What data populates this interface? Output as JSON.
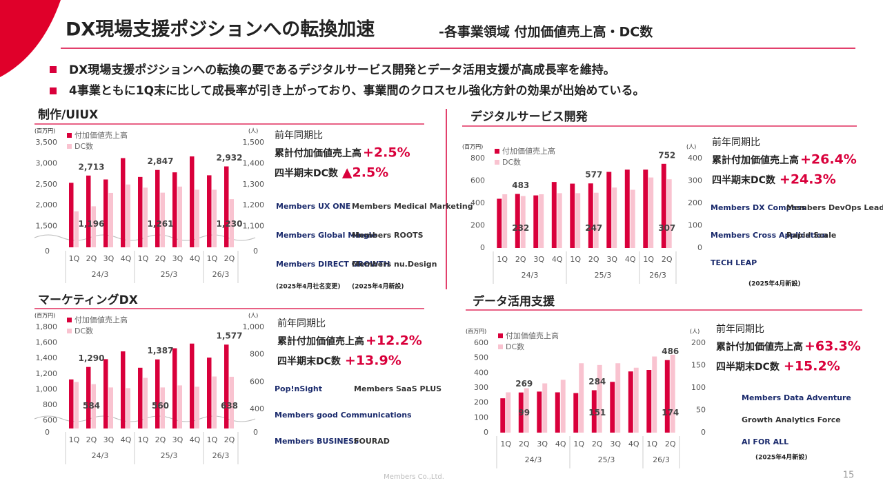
{
  "header": {
    "title": "DX現場支援ポジションへの転換加速",
    "subtitle": "-各事業領域 付加価値売上高・DC数"
  },
  "bullets": [
    "DX現場支援ポジションへの転換の要であるデジタルサービス開発とデータ活用支援が高成長率を維持。",
    "4事業ともに1Q末に比して成長率が引き上がっており、事業間のクロスセル強化方針の効果が出始めている。"
  ],
  "chart_data": [
    {
      "type": "bar",
      "title": "制作/UIUX",
      "ylabel": "(百万円)",
      "y2label": "(人)",
      "categories": [
        "1Q",
        "2Q",
        "3Q",
        "4Q",
        "1Q",
        "2Q",
        "3Q",
        "4Q",
        "1Q",
        "2Q"
      ],
      "groups": [
        {
          "label": "24/3",
          "span": 4
        },
        {
          "label": "25/3",
          "span": 4
        },
        {
          "label": "26/3",
          "span": 2
        }
      ],
      "ylim": [
        1000,
        3500
      ],
      "yticks": [
        {
          "value": 1500,
          "label": "1,500"
        },
        {
          "value": 2000,
          "label": "2,000"
        },
        {
          "value": 2500,
          "label": "2,500"
        },
        {
          "value": 3000,
          "label": "3,000"
        },
        {
          "value": 3500,
          "label": "3,500"
        }
      ],
      "ybase": 0,
      "y2lim": [
        1000,
        1500
      ],
      "y2ticks": [
        {
          "value": 1100,
          "label": "1,100"
        },
        {
          "value": 1200,
          "label": "1,200"
        },
        {
          "value": 1300,
          "label": "1,300"
        },
        {
          "value": 1400,
          "label": "1,400"
        },
        {
          "value": 1500,
          "label": "1,500"
        }
      ],
      "y2base": 0,
      "series": [
        {
          "name": "付加価値売上高",
          "color": "#d9003b",
          "values": [
            2540,
            2713,
            2620,
            3130,
            2680,
            2847,
            2790,
            3170,
            2720,
            2932
          ],
          "value_labels": [
            null,
            "2,713",
            null,
            null,
            null,
            "2,847",
            null,
            null,
            null,
            "2,932"
          ]
        },
        {
          "name": "DC数",
          "color": "#f9c3d0",
          "axis": "y2",
          "values": [
            1172,
            1196,
            1260,
            1300,
            1285,
            1261,
            1290,
            1275,
            1275,
            1230
          ],
          "value_labels": [
            null,
            "1,196",
            null,
            null,
            null,
            "1,261",
            null,
            null,
            null,
            "1,230"
          ]
        }
      ]
    },
    {
      "type": "bar",
      "title": "デジタルサービス開発",
      "ylabel": "(百万円)",
      "y2label": "(人)",
      "categories": [
        "1Q",
        "2Q",
        "3Q",
        "4Q",
        "1Q",
        "2Q",
        "3Q",
        "4Q",
        "1Q",
        "2Q"
      ],
      "groups": [
        {
          "label": "24/3",
          "span": 4
        },
        {
          "label": "25/3",
          "span": 4
        },
        {
          "label": "26/3",
          "span": 2
        }
      ],
      "ylim": [
        0,
        800
      ],
      "yticks": [
        0,
        200,
        400,
        600,
        800
      ],
      "y2lim": [
        0,
        400
      ],
      "y2ticks": [
        0,
        100,
        200,
        300,
        400
      ],
      "series": [
        {
          "name": "付加価値売上高",
          "color": "#d9003b",
          "values": [
            440,
            483,
            470,
            590,
            575,
            577,
            680,
            700,
            700,
            752
          ],
          "value_labels": [
            null,
            "483",
            null,
            null,
            null,
            "577",
            null,
            null,
            null,
            "752"
          ]
        },
        {
          "name": "DC数",
          "color": "#f9c3d0",
          "axis": "y2",
          "values": [
            240,
            232,
            240,
            245,
            245,
            247,
            270,
            260,
            315,
            307
          ],
          "value_labels": [
            null,
            "232",
            null,
            null,
            null,
            "247",
            null,
            null,
            null,
            "307"
          ]
        }
      ]
    },
    {
      "type": "bar",
      "title": "マーケティングDX",
      "ylabel": "(百万円)",
      "y2label": "(人)",
      "categories": [
        "1Q",
        "2Q",
        "3Q",
        "4Q",
        "1Q",
        "2Q",
        "3Q",
        "4Q",
        "1Q",
        "2Q"
      ],
      "groups": [
        {
          "label": "24/3",
          "span": 4
        },
        {
          "label": "25/3",
          "span": 4
        },
        {
          "label": "26/3",
          "span": 2
        }
      ],
      "ylim": [
        500,
        1800
      ],
      "yticks": [
        600,
        800,
        {
          "value": 1000,
          "label": "1,000"
        },
        {
          "value": 1200,
          "label": "1,200"
        },
        {
          "value": 1400,
          "label": "1,400"
        },
        {
          "value": 1600,
          "label": "1,600"
        },
        {
          "value": 1800,
          "label": "1,800"
        }
      ],
      "ybase": 0,
      "y2lim": [
        260,
        1000
      ],
      "y2ticks": [
        400,
        600,
        800,
        {
          "value": 1000,
          "label": "1,000"
        }
      ],
      "y2base": 0,
      "series": [
        {
          "name": "付加価値売上高",
          "color": "#d9003b",
          "values": [
            1130,
            1290,
            1390,
            1490,
            1280,
            1387,
            1530,
            1590,
            1410,
            1577
          ],
          "value_labels": [
            null,
            "1,290",
            null,
            null,
            null,
            "1,387",
            null,
            null,
            null,
            "1,577"
          ]
        },
        {
          "name": "DC数",
          "color": "#f9c3d0",
          "axis": "y2",
          "values": [
            600,
            584,
            560,
            555,
            630,
            560,
            575,
            565,
            640,
            638
          ],
          "value_labels": [
            null,
            "584",
            null,
            null,
            null,
            "560",
            null,
            null,
            null,
            "638"
          ]
        }
      ]
    },
    {
      "type": "bar",
      "title": "データ活用支援",
      "ylabel": "(百万円)",
      "y2label": "(人)",
      "categories": [
        "1Q",
        "2Q",
        "3Q",
        "4Q",
        "1Q",
        "2Q",
        "3Q",
        "4Q",
        "1Q",
        "2Q"
      ],
      "groups": [
        {
          "label": "24/3",
          "span": 4
        },
        {
          "label": "25/3",
          "span": 4
        },
        {
          "label": "26/3",
          "span": 2
        }
      ],
      "ylim": [
        0,
        600
      ],
      "yticks": [
        0,
        100,
        200,
        300,
        400,
        500,
        600
      ],
      "y2lim": [
        0,
        200
      ],
      "y2ticks": [
        0,
        50,
        100,
        150,
        200
      ],
      "series": [
        {
          "name": "付加価値売上高",
          "color": "#d9003b",
          "values": [
            230,
            269,
            275,
            270,
            265,
            284,
            340,
            410,
            420,
            486
          ],
          "value_labels": [
            null,
            "269",
            null,
            null,
            null,
            "284",
            null,
            null,
            null,
            "486"
          ]
        },
        {
          "name": "DC数",
          "color": "#f9c3d0",
          "axis": "y2",
          "values": [
            90,
            99,
            110,
            118,
            155,
            151,
            155,
            145,
            170,
            174
          ],
          "value_labels": [
            null,
            "99",
            null,
            null,
            null,
            "151",
            null,
            null,
            null,
            "174"
          ]
        }
      ]
    }
  ],
  "panels": [
    {
      "caption": "前年同期比",
      "sales_label": "累計付加価値売上高",
      "sales_change": "+2.5%",
      "dc_label": "四半期末DC数",
      "dc_change": "▲2.5%",
      "logos": [
        "Members UX ONE",
        "Members Medical Marketing",
        "Members Global Mingle",
        "Members ROOTS",
        "Members DIRECT GROWTH",
        "Members nu.Design"
      ],
      "notes": [
        "(2025年4月社名変更)",
        "(2025年4月新設)"
      ]
    },
    {
      "caption": "前年同期比",
      "sales_label": "累計付加価値売上高",
      "sales_change": "+26.4%",
      "dc_label": "四半期末DC数",
      "dc_change": "+24.3%",
      "logos": [
        "Members DX Compass",
        "Members DevOps Lead",
        "Members Cross Application",
        "Rapid Scale",
        "TECH LEAP"
      ],
      "notes": [
        "(2025年4月新設)"
      ]
    },
    {
      "caption": "前年同期比",
      "sales_label": "累計付加価値売上高",
      "sales_change": "+12.2%",
      "dc_label": "四半期末DC数",
      "dc_change": "+13.9%",
      "logos": [
        "Pop!nSight",
        "Members SaaS PLUS",
        "Members good Communications",
        "",
        "Members BUSINESS",
        "FOURAD"
      ],
      "notes": []
    },
    {
      "caption": "前年同期比",
      "sales_label": "累計付加価値売上高",
      "sales_change": "+63.3%",
      "dc_label": "四半期末DC数",
      "dc_change": "+15.2%",
      "logos": [
        "Members Data Adventure",
        "Growth Analytics Force",
        "AI FOR ALL"
      ],
      "notes": [
        "(2025年4月新設)"
      ]
    }
  ],
  "footer": {
    "company": "Members Co.,Ltd.",
    "page": "15"
  }
}
